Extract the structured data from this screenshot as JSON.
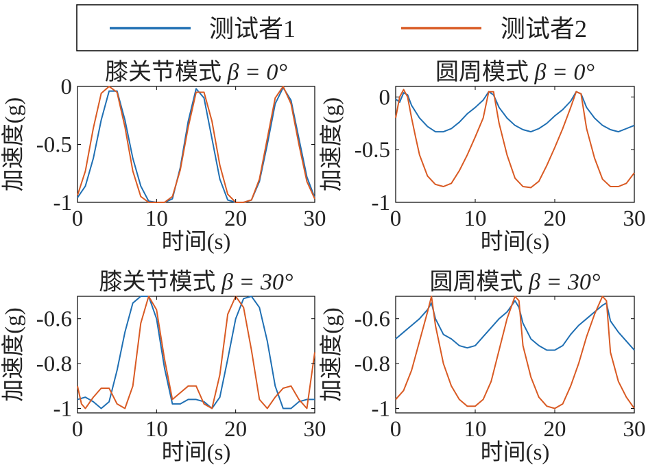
{
  "legend": {
    "position": "top",
    "entries": [
      {
        "label": "测试者1",
        "color": "#1f6fb3"
      },
      {
        "label": "测试者2",
        "color": "#d95a23"
      }
    ]
  },
  "chart_data": [
    {
      "type": "line",
      "title_prefix": "膝关节模式",
      "beta_label": "β = 0°",
      "xlabel": "时间(s)",
      "ylabel": "加速度(g)",
      "xlim": [
        0,
        30
      ],
      "ylim": [
        -1,
        0
      ],
      "xticks": [
        "0",
        "10",
        "20",
        "30"
      ],
      "yticks": [
        {
          "v": 0,
          "l": "0"
        },
        {
          "v": -0.5,
          "l": "-0.5"
        },
        {
          "v": -1,
          "l": "-1"
        }
      ],
      "grid": false,
      "series": [
        {
          "name": "测试者1",
          "color": "#1f6fb3",
          "x": [
            0,
            1,
            2,
            3,
            4,
            5,
            6,
            7,
            8,
            9,
            10,
            11,
            12,
            13,
            14,
            15,
            16,
            17,
            18,
            19,
            20,
            21,
            22,
            23,
            24,
            25,
            26,
            27,
            28,
            29,
            30
          ],
          "y": [
            -0.96,
            -0.86,
            -0.62,
            -0.29,
            -0.04,
            -0.04,
            -0.29,
            -0.62,
            -0.86,
            -0.99,
            -1.0,
            -1.0,
            -0.97,
            -0.7,
            -0.3,
            -0.02,
            -0.1,
            -0.45,
            -0.8,
            -0.98,
            -1.0,
            -1.0,
            -0.98,
            -0.82,
            -0.5,
            -0.15,
            -0.01,
            -0.12,
            -0.45,
            -0.78,
            -0.96
          ]
        },
        {
          "name": "测试者2",
          "color": "#d95a23",
          "x": [
            0,
            1,
            2,
            3,
            4,
            5,
            6,
            7,
            8,
            9,
            10,
            11,
            12,
            13,
            14,
            15,
            16,
            17,
            18,
            19,
            20,
            21,
            22,
            23,
            24,
            25,
            26,
            27,
            28,
            29,
            30
          ],
          "y": [
            -0.94,
            -0.73,
            -0.36,
            -0.06,
            0,
            -0.05,
            -0.35,
            -0.73,
            -0.95,
            -1.0,
            -1.0,
            -1.0,
            -0.95,
            -0.72,
            -0.35,
            -0.05,
            -0.05,
            -0.3,
            -0.68,
            -0.93,
            -1.0,
            -1.0,
            -0.98,
            -0.8,
            -0.45,
            -0.1,
            0,
            -0.15,
            -0.5,
            -0.82,
            -0.97
          ]
        }
      ]
    },
    {
      "type": "line",
      "title_prefix": "圆周模式",
      "beta_label": "β = 0°",
      "xlabel": "时间(s)",
      "ylabel": "加速度(g)",
      "xlim": [
        0,
        30
      ],
      "ylim": [
        -1,
        0.1
      ],
      "xticks": [
        "0",
        "10",
        "20",
        "30"
      ],
      "yticks": [
        {
          "v": 0,
          "l": "0"
        },
        {
          "v": -0.5,
          "l": "-0.5"
        },
        {
          "v": -1,
          "l": "-1"
        }
      ],
      "grid": false,
      "series": [
        {
          "name": "测试者1",
          "color": "#1f6fb3",
          "x": [
            0,
            0.5,
            1,
            1.5,
            2,
            2.5,
            3,
            3.5,
            4,
            5,
            6,
            7,
            8,
            9,
            10,
            11,
            11.7,
            12.3,
            13,
            14,
            15,
            16,
            17,
            18,
            19,
            20,
            21,
            22,
            22.7,
            23.3,
            24,
            25,
            26,
            27,
            28,
            29,
            30
          ],
          "y": [
            -0.02,
            -0.05,
            0.04,
            0.02,
            -0.08,
            -0.14,
            -0.2,
            -0.24,
            -0.28,
            -0.33,
            -0.33,
            -0.3,
            -0.24,
            -0.16,
            -0.1,
            -0.03,
            0.05,
            0.02,
            -0.1,
            -0.2,
            -0.27,
            -0.31,
            -0.33,
            -0.3,
            -0.25,
            -0.18,
            -0.12,
            -0.04,
            0.05,
            0.03,
            -0.1,
            -0.2,
            -0.27,
            -0.31,
            -0.33,
            -0.3,
            -0.27
          ]
        },
        {
          "name": "测试者2",
          "color": "#d95a23",
          "x": [
            0,
            0.5,
            1,
            1.5,
            2,
            2.5,
            3,
            4,
            5,
            6,
            7,
            8,
            9,
            10,
            11,
            11.7,
            12.3,
            13,
            14,
            15,
            16,
            17,
            18,
            19,
            20,
            21,
            22,
            22.7,
            23.3,
            24,
            25,
            26,
            27,
            28,
            29,
            30
          ],
          "y": [
            -0.2,
            0.0,
            0.07,
            0.0,
            -0.2,
            -0.38,
            -0.55,
            -0.75,
            -0.83,
            -0.85,
            -0.82,
            -0.7,
            -0.55,
            -0.38,
            -0.2,
            0.05,
            0.05,
            -0.25,
            -0.55,
            -0.77,
            -0.85,
            -0.86,
            -0.8,
            -0.65,
            -0.48,
            -0.3,
            -0.1,
            0.05,
            0.03,
            -0.3,
            -0.58,
            -0.78,
            -0.85,
            -0.85,
            -0.82,
            -0.72
          ]
        }
      ]
    },
    {
      "type": "line",
      "title_prefix": "膝关节模式",
      "beta_label": "β = 30°",
      "xlabel": "时间(s)",
      "ylabel": "加速度(g)",
      "xlim": [
        0,
        30
      ],
      "ylim": [
        -1.02,
        -0.5
      ],
      "xticks": [
        "0",
        "10",
        "20",
        "30"
      ],
      "yticks": [
        {
          "v": -0.6,
          "l": "-0.6"
        },
        {
          "v": -0.8,
          "l": "-0.8"
        },
        {
          "v": -1,
          "l": "-1"
        }
      ],
      "grid": false,
      "series": [
        {
          "name": "测试者1",
          "color": "#1f6fb3",
          "x": [
            0,
            1,
            2,
            3,
            4,
            5,
            6,
            7,
            8,
            9,
            10,
            11,
            12,
            13,
            14,
            15,
            16,
            17,
            18,
            19,
            20,
            21,
            22,
            23,
            24,
            25,
            26,
            27,
            28,
            29,
            30
          ],
          "y": [
            -0.96,
            -0.95,
            -0.97,
            -1.0,
            -0.97,
            -0.83,
            -0.66,
            -0.53,
            -0.5,
            -0.5,
            -0.6,
            -0.82,
            -0.98,
            -0.98,
            -0.96,
            -0.96,
            -0.97,
            -1.0,
            -0.95,
            -0.78,
            -0.6,
            -0.51,
            -0.5,
            -0.55,
            -0.7,
            -0.9,
            -1.0,
            -1.0,
            -0.97,
            -0.96,
            -0.96
          ]
        },
        {
          "name": "测试者2",
          "color": "#d95a23",
          "x": [
            0,
            0.5,
            1,
            2,
            3,
            4,
            5,
            6,
            7,
            8,
            9,
            10,
            11,
            12,
            13,
            14,
            15,
            16,
            17,
            18,
            19,
            20,
            21,
            22,
            23,
            24,
            25,
            26,
            27,
            28,
            29,
            30
          ],
          "y": [
            -0.9,
            -0.98,
            -1.0,
            -0.95,
            -0.91,
            -0.91,
            -0.98,
            -1.0,
            -0.9,
            -0.62,
            -0.5,
            -0.56,
            -0.78,
            -0.96,
            -0.93,
            -0.9,
            -0.9,
            -0.98,
            -1.0,
            -0.85,
            -0.58,
            -0.5,
            -0.55,
            -0.74,
            -0.96,
            -1.0,
            -0.95,
            -0.91,
            -0.9,
            -0.96,
            -1.0,
            -0.75
          ]
        }
      ]
    },
    {
      "type": "line",
      "title_prefix": "圆周模式",
      "beta_label": "β = 30°",
      "xlabel": "时间(s)",
      "ylabel": "加速度(g)",
      "xlim": [
        0,
        30
      ],
      "ylim": [
        -1.02,
        -0.5
      ],
      "xticks": [
        "0",
        "10",
        "20",
        "30"
      ],
      "yticks": [
        {
          "v": -0.6,
          "l": "-0.6"
        },
        {
          "v": -0.8,
          "l": "-0.8"
        },
        {
          "v": -1,
          "l": "-1"
        }
      ],
      "grid": false,
      "series": [
        {
          "name": "测试者1",
          "color": "#1f6fb3",
          "x": [
            0,
            1,
            2,
            3,
            4,
            4.5,
            5,
            6,
            7,
            8,
            9,
            10,
            11,
            12,
            13,
            14,
            15,
            15.5,
            16,
            17,
            18,
            19,
            20,
            21,
            22,
            23,
            24,
            25,
            26,
            26.5,
            27,
            28,
            29,
            30
          ],
          "y": [
            -0.69,
            -0.66,
            -0.63,
            -0.6,
            -0.56,
            -0.53,
            -0.6,
            -0.67,
            -0.69,
            -0.72,
            -0.73,
            -0.72,
            -0.68,
            -0.64,
            -0.6,
            -0.57,
            -0.52,
            -0.55,
            -0.62,
            -0.69,
            -0.72,
            -0.74,
            -0.74,
            -0.72,
            -0.67,
            -0.63,
            -0.6,
            -0.57,
            -0.54,
            -0.53,
            -0.61,
            -0.66,
            -0.7,
            -0.74
          ]
        },
        {
          "name": "测试者2",
          "color": "#d95a23",
          "x": [
            0,
            1,
            2,
            3,
            4,
            4.5,
            5,
            6,
            7,
            8,
            9,
            10,
            11,
            12,
            13,
            14,
            15,
            15.5,
            16,
            17,
            18,
            19,
            20,
            21,
            22,
            23,
            24,
            25,
            26,
            26.5,
            27,
            28,
            29,
            30
          ],
          "y": [
            -0.96,
            -0.92,
            -0.83,
            -0.7,
            -0.57,
            -0.5,
            -0.63,
            -0.8,
            -0.9,
            -0.96,
            -0.99,
            -0.99,
            -0.96,
            -0.88,
            -0.74,
            -0.6,
            -0.5,
            -0.52,
            -0.72,
            -0.86,
            -0.95,
            -0.99,
            -1.0,
            -0.98,
            -0.9,
            -0.8,
            -0.68,
            -0.58,
            -0.5,
            -0.52,
            -0.75,
            -0.88,
            -0.95,
            -1.0
          ]
        }
      ]
    }
  ]
}
